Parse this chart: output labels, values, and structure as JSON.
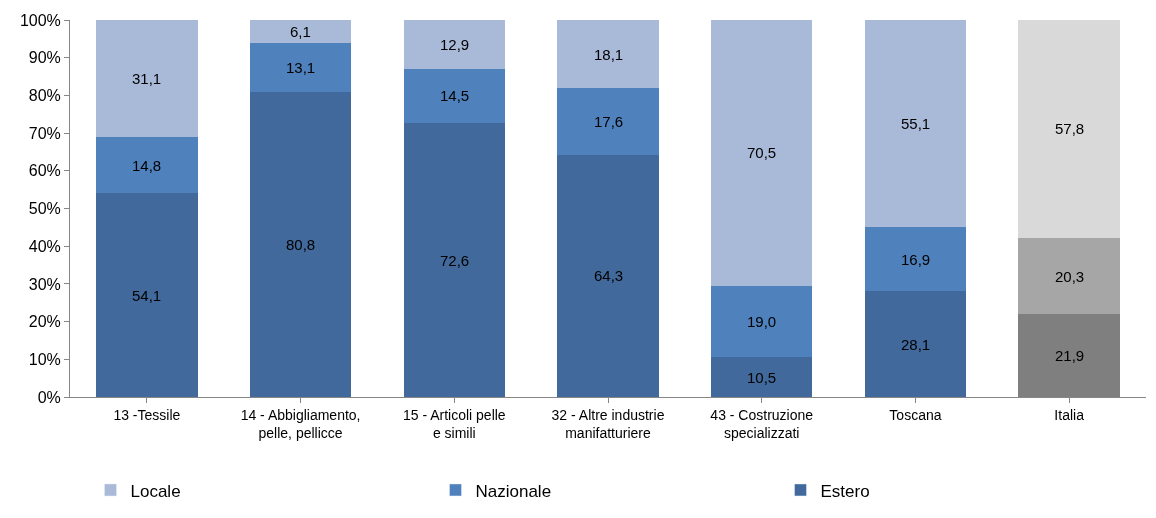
{
  "chart_data": {
    "type": "bar",
    "stacked": true,
    "categories": [
      "13 -Tessile",
      "14 - Abbigliamento, pelle, pellicce",
      "15 - Articoli pelle e simili",
      "32 - Altre industrie manifatturiere",
      "43 - Costruzione specializzati",
      "Toscana",
      "Italia"
    ],
    "series": [
      {
        "name": "Estero",
        "color": "#41699b",
        "colors": [
          "#41699b",
          "#41699b",
          "#41699b",
          "#41699b",
          "#41699b",
          "#41699b",
          "#7f7f7f"
        ],
        "values": [
          54.1,
          80.8,
          72.6,
          64.3,
          10.5,
          28.1,
          21.9
        ],
        "value_labels": [
          "54,1",
          "80,8",
          "72,6",
          "64,3",
          "10,5",
          "28,1",
          "21,9"
        ]
      },
      {
        "name": "Nazionale",
        "color": "#4f81bd",
        "colors": [
          "#4f81bd",
          "#4f81bd",
          "#4f81bd",
          "#4f81bd",
          "#4f81bd",
          "#4f81bd",
          "#a6a6a6"
        ],
        "values": [
          14.8,
          13.1,
          14.5,
          17.6,
          19.0,
          16.9,
          20.3
        ],
        "value_labels": [
          "14,8",
          "13,1",
          "14,5",
          "17,6",
          "19,0",
          "16,9",
          "20,3"
        ]
      },
      {
        "name": "Locale",
        "color": "#a9b9d8",
        "colors": [
          "#a9b9d8",
          "#a9b9d8",
          "#a9b9d8",
          "#a9b9d8",
          "#a9b9d8",
          "#a9b9d8",
          "#d9d9d9"
        ],
        "values": [
          31.1,
          6.1,
          12.9,
          18.1,
          70.5,
          55.1,
          57.8
        ],
        "value_labels": [
          "31,1",
          "6,1",
          "12,9",
          "18,1",
          "70,5",
          "55,1",
          "57,8"
        ]
      }
    ],
    "ylim": [
      0,
      100
    ],
    "yticks": [
      {
        "value": 0,
        "label": "0%"
      },
      {
        "value": 10,
        "label": "10%"
      },
      {
        "value": 20,
        "label": "20%"
      },
      {
        "value": 30,
        "label": "30%"
      },
      {
        "value": 40,
        "label": "40%"
      },
      {
        "value": 50,
        "label": "50%"
      },
      {
        "value": 60,
        "label": "60%"
      },
      {
        "value": 70,
        "label": "70%"
      },
      {
        "value": 80,
        "label": "80%"
      },
      {
        "value": 90,
        "label": "90%"
      },
      {
        "value": 100,
        "label": "100%"
      }
    ],
    "grid": false,
    "legend": "bottom"
  }
}
